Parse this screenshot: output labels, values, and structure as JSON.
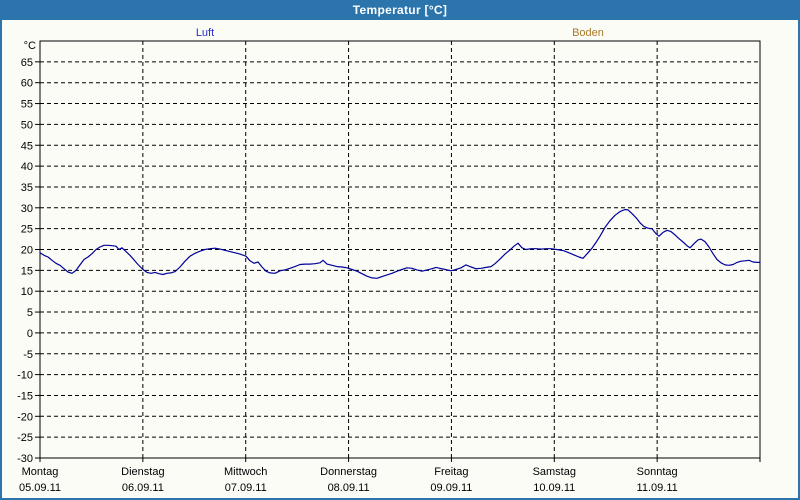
{
  "window": {
    "title": "Temperatur [°C]",
    "titlebar_color": "#2b74ac",
    "background_color": "#fcfcf7"
  },
  "legend": [
    {
      "label": "Luft",
      "color": "#2a2ac8"
    },
    {
      "label": "Boden",
      "color": "#a87828"
    }
  ],
  "chart_data": {
    "type": "line",
    "title": "Temperatur [°C]",
    "ylabel": "°C",
    "ylim": [
      -30,
      70
    ],
    "ytick_step": 5,
    "grid": "dashed",
    "legend_position": "top",
    "yticks": [
      "65",
      "60",
      "55",
      "50",
      "45",
      "40",
      "35",
      "30",
      "25",
      "20",
      "15",
      "10",
      "5",
      "0",
      "-5",
      "-10",
      "-15",
      "-20",
      "-25",
      "-30"
    ],
    "x_days": [
      {
        "name": "Montag",
        "date": "05.09.11"
      },
      {
        "name": "Dienstag",
        "date": "06.09.11"
      },
      {
        "name": "Mittwoch",
        "date": "07.09.11"
      },
      {
        "name": "Donnerstag",
        "date": "08.09.11"
      },
      {
        "name": "Freitag",
        "date": "09.09.11"
      },
      {
        "name": "Samstag",
        "date": "10.09.11"
      },
      {
        "name": "Sonntag",
        "date": "11.09.11"
      }
    ],
    "series": [
      {
        "name": "Luft",
        "color": "#000099",
        "points_day_temp": [
          [
            0.0,
            19.2
          ],
          [
            0.039,
            18.6
          ],
          [
            0.078,
            18.2
          ],
          [
            0.117,
            17.4
          ],
          [
            0.156,
            16.7
          ],
          [
            0.194,
            16.2
          ],
          [
            0.233,
            15.4
          ],
          [
            0.272,
            14.6
          ],
          [
            0.311,
            14.3
          ],
          [
            0.35,
            15.0
          ],
          [
            0.389,
            16.3
          ],
          [
            0.428,
            17.6
          ],
          [
            0.467,
            18.2
          ],
          [
            0.506,
            19.0
          ],
          [
            0.544,
            20.0
          ],
          [
            0.583,
            20.6
          ],
          [
            0.622,
            21.0
          ],
          [
            0.661,
            21.0
          ],
          [
            0.7,
            20.9
          ],
          [
            0.739,
            20.8
          ],
          [
            0.768,
            20.0
          ],
          [
            0.797,
            20.4
          ],
          [
            0.836,
            19.5
          ],
          [
            0.875,
            18.6
          ],
          [
            0.914,
            17.5
          ],
          [
            0.953,
            16.4
          ],
          [
            1.001,
            15.2
          ],
          [
            1.04,
            14.5
          ],
          [
            1.079,
            14.3
          ],
          [
            1.118,
            14.5
          ],
          [
            1.157,
            14.2
          ],
          [
            1.196,
            14.0
          ],
          [
            1.235,
            14.3
          ],
          [
            1.274,
            14.4
          ],
          [
            1.313,
            14.7
          ],
          [
            1.361,
            15.8
          ],
          [
            1.41,
            17.2
          ],
          [
            1.458,
            18.4
          ],
          [
            1.507,
            19.1
          ],
          [
            1.556,
            19.6
          ],
          [
            1.604,
            20.0
          ],
          [
            1.653,
            20.2
          ],
          [
            1.701,
            20.3
          ],
          [
            1.75,
            20.1
          ],
          [
            1.799,
            19.8
          ],
          [
            1.847,
            19.5
          ],
          [
            1.896,
            19.2
          ],
          [
            1.944,
            18.9
          ],
          [
            2.003,
            18.4
          ],
          [
            2.042,
            17.3
          ],
          [
            2.081,
            16.7
          ],
          [
            2.119,
            17.0
          ],
          [
            2.158,
            15.8
          ],
          [
            2.197,
            14.8
          ],
          [
            2.236,
            14.4
          ],
          [
            2.285,
            14.3
          ],
          [
            2.333,
            14.9
          ],
          [
            2.382,
            15.1
          ],
          [
            2.431,
            15.5
          ],
          [
            2.479,
            15.9
          ],
          [
            2.528,
            16.4
          ],
          [
            2.576,
            16.5
          ],
          [
            2.625,
            16.5
          ],
          [
            2.674,
            16.6
          ],
          [
            2.722,
            16.8
          ],
          [
            2.751,
            17.4
          ],
          [
            2.79,
            16.5
          ],
          [
            2.839,
            16.2
          ],
          [
            2.888,
            15.9
          ],
          [
            2.936,
            15.8
          ],
          [
            2.985,
            15.6
          ],
          [
            3.033,
            15.2
          ],
          [
            3.082,
            14.8
          ],
          [
            3.131,
            14.2
          ],
          [
            3.179,
            13.6
          ],
          [
            3.228,
            13.2
          ],
          [
            3.276,
            13.1
          ],
          [
            3.325,
            13.5
          ],
          [
            3.374,
            13.9
          ],
          [
            3.422,
            14.3
          ],
          [
            3.471,
            14.8
          ],
          [
            3.519,
            15.2
          ],
          [
            3.568,
            15.6
          ],
          [
            3.617,
            15.5
          ],
          [
            3.665,
            15.1
          ],
          [
            3.714,
            14.8
          ],
          [
            3.763,
            15.1
          ],
          [
            3.811,
            15.4
          ],
          [
            3.85,
            15.7
          ],
          [
            3.889,
            15.5
          ],
          [
            3.938,
            15.2
          ],
          [
            3.996,
            14.9
          ],
          [
            4.044,
            15.2
          ],
          [
            4.093,
            15.6
          ],
          [
            4.142,
            16.3
          ],
          [
            4.19,
            15.8
          ],
          [
            4.239,
            15.4
          ],
          [
            4.288,
            15.5
          ],
          [
            4.336,
            15.7
          ],
          [
            4.385,
            15.9
          ],
          [
            4.424,
            16.6
          ],
          [
            4.472,
            17.7
          ],
          [
            4.521,
            18.9
          ],
          [
            4.569,
            19.9
          ],
          [
            4.608,
            20.8
          ],
          [
            4.647,
            21.5
          ],
          [
            4.686,
            20.4
          ],
          [
            4.725,
            20.0
          ],
          [
            4.774,
            20.2
          ],
          [
            4.822,
            20.2
          ],
          [
            4.871,
            20.1
          ],
          [
            4.919,
            20.2
          ],
          [
            4.968,
            20.2
          ],
          [
            4.997,
            20.1
          ],
          [
            5.046,
            19.9
          ],
          [
            5.094,
            19.7
          ],
          [
            5.143,
            19.2
          ],
          [
            5.192,
            18.7
          ],
          [
            5.24,
            18.2
          ],
          [
            5.279,
            17.9
          ],
          [
            5.328,
            19.2
          ],
          [
            5.367,
            20.3
          ],
          [
            5.406,
            21.7
          ],
          [
            5.444,
            23.2
          ],
          [
            5.493,
            25.3
          ],
          [
            5.542,
            26.9
          ],
          [
            5.59,
            28.2
          ],
          [
            5.639,
            29.1
          ],
          [
            5.688,
            29.6
          ],
          [
            5.717,
            29.5
          ],
          [
            5.756,
            28.6
          ],
          [
            5.795,
            27.6
          ],
          [
            5.833,
            26.4
          ],
          [
            5.872,
            25.5
          ],
          [
            5.911,
            25.1
          ],
          [
            5.95,
            25.0
          ],
          [
            5.989,
            23.8
          ],
          [
            6.018,
            23.2
          ],
          [
            6.057,
            24.1
          ],
          [
            6.096,
            24.6
          ],
          [
            6.135,
            24.3
          ],
          [
            6.174,
            23.5
          ],
          [
            6.213,
            22.6
          ],
          [
            6.251,
            21.8
          ],
          [
            6.29,
            20.9
          ],
          [
            6.319,
            20.4
          ],
          [
            6.358,
            21.4
          ],
          [
            6.397,
            22.3
          ],
          [
            6.426,
            22.5
          ],
          [
            6.465,
            21.9
          ],
          [
            6.504,
            20.6
          ],
          [
            6.543,
            19.0
          ],
          [
            6.582,
            17.6
          ],
          [
            6.621,
            16.8
          ],
          [
            6.66,
            16.3
          ],
          [
            6.699,
            16.2
          ],
          [
            6.738,
            16.4
          ],
          [
            6.777,
            16.9
          ],
          [
            6.815,
            17.2
          ],
          [
            6.854,
            17.3
          ],
          [
            6.893,
            17.4
          ],
          [
            6.932,
            17.0
          ],
          [
            6.971,
            16.9
          ],
          [
            7.0,
            16.9
          ]
        ]
      },
      {
        "name": "Boden",
        "color": "#a87828",
        "points_day_temp": []
      }
    ]
  }
}
